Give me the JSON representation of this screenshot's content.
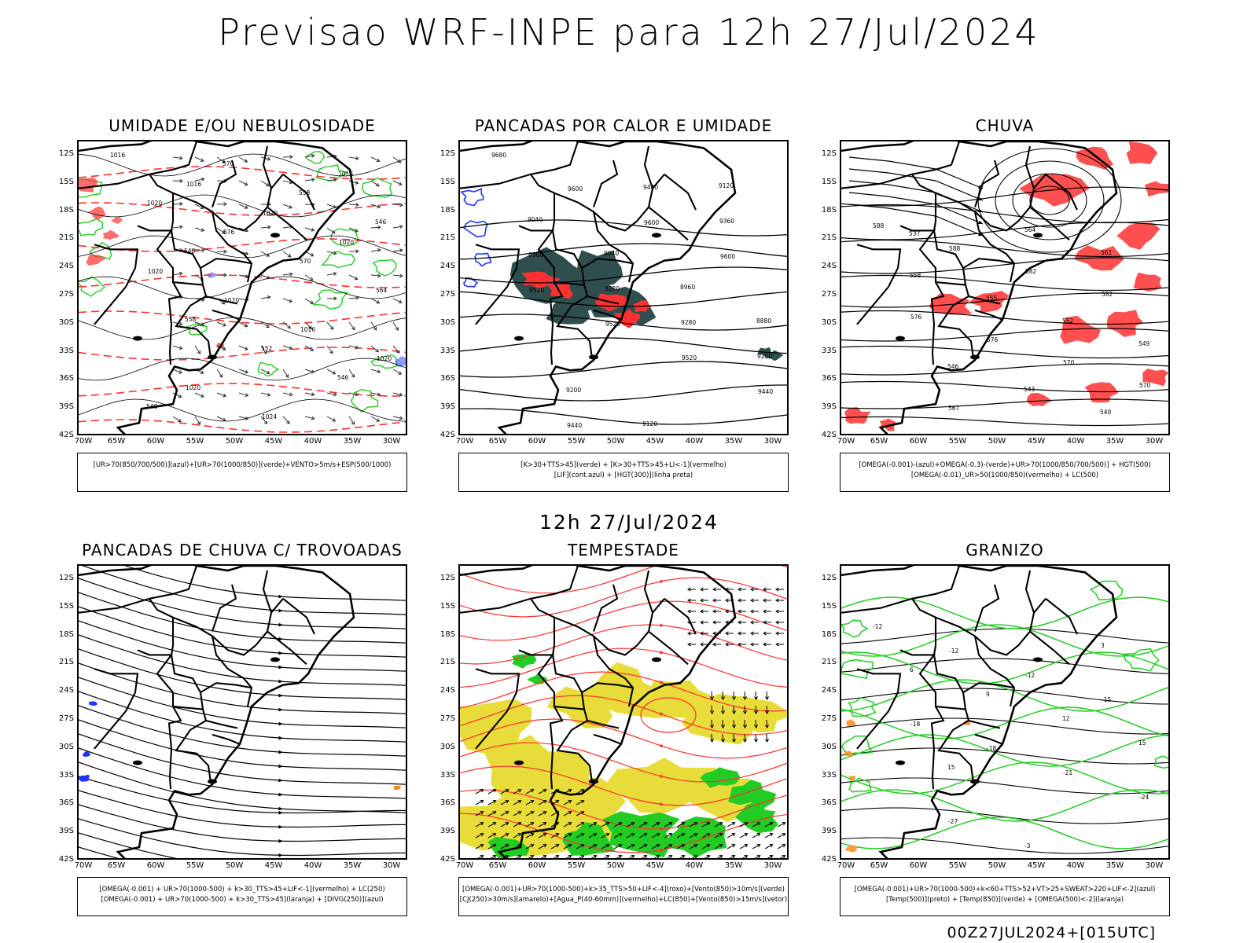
{
  "header": {
    "title": "Previsao WRF-INPE  para 12h 27/Jul/2024",
    "subtitle": "12h 27/Jul/2024",
    "footer": "00Z27JUL2024+[015UTC]"
  },
  "axes": {
    "lat_labels": [
      "12S",
      "15S",
      "18S",
      "21S",
      "24S",
      "27S",
      "30S",
      "33S",
      "36S",
      "39S",
      "42S"
    ],
    "lon_labels": [
      "70W",
      "65W",
      "60W",
      "55W",
      "50W",
      "45W",
      "40W",
      "35W",
      "30W"
    ]
  },
  "colors": {
    "red": "#ff3030",
    "green": "#22cc22",
    "blue": "#2233ff",
    "dark_teal": "#2f4f4f",
    "yellow": "#e8dc3a",
    "orange": "#ff8c1a",
    "black": "#000000"
  },
  "panels": [
    {
      "id": "umidade",
      "title": "UMIDADE E/OU NEBULOSIDADE",
      "legend": [
        "[UR>70(850/700/500)](azul)+[UR>70(1000/850)](verde)+VENTO>5m/s+ESP(500/1000)"
      ],
      "contour_labels": [
        "1016",
        "1016",
        "1020",
        "1020",
        "1020",
        "1020",
        "1016",
        "1020",
        "1020",
        "1024",
        "1016",
        "1020",
        "576",
        "570",
        "564",
        "558",
        "552",
        "546",
        "540",
        "570",
        "558",
        "546",
        "540"
      ]
    },
    {
      "id": "pancadas-calor",
      "title": "PANCADAS POR CALOR E UMIDADE",
      "legend": [
        "[K>30+TTS>45](verde) + [K>30+TTS>45+LI<-1](vermelho)",
        "[LIF](cont.azul) + [HGT(300)](linha preta)"
      ],
      "contour_labels": [
        "9680",
        "9600",
        "9600",
        "9600",
        "9520",
        "9520",
        "9520",
        "9440",
        "9440",
        "9440",
        "9360",
        "9360",
        "9280",
        "9280",
        "9200",
        "9200",
        "9120",
        "9120",
        "9040",
        "9040",
        "8960",
        "8880"
      ]
    },
    {
      "id": "chuva",
      "title": "CHUVA",
      "legend": [
        "[OMEGA(-0.001)-(azul)+OMEGA(-0.3)-(verde)+UR>70(1000/850/700/500)] + HGT(500)",
        "[OMEGA(-0.01)_UR>50(1000/850)(vermelho) + LC(500)"
      ],
      "contour_labels": [
        "588",
        "588",
        "582",
        "582",
        "576",
        "576",
        "570",
        "570",
        "567",
        "564",
        "561",
        "558",
        "555",
        "552",
        "549",
        "546",
        "543",
        "540",
        "537"
      ]
    },
    {
      "id": "pancadas-trovoadas",
      "title": "PANCADAS DE CHUVA C/ TROVOADAS",
      "legend": [
        "[OMEGA(-0.001) + UR>70(1000-500) + k>30_TTS>45+LIF<-1](vermelho) + LC(250)",
        "[OMEGA(-0.001) + UR>70(1000-500) + k>30_TTS>45](laranja) + [DIVG(250)](azul)"
      ],
      "contour_labels": []
    },
    {
      "id": "tempestade",
      "title": "TEMPESTADE",
      "legend": [
        "[OMEGA(-0.001)+UR>70(1000-500)+k>35_TTS>50+LIF<-4](roxo)+[Vento(850)>10m/s](verde)",
        "[CJ(250)>30m/s](amarelo)+[Agua_P(40-60mm)](vermelho)+LC(850)+[Vento(850)>15m/s](vetor)"
      ],
      "contour_labels": []
    },
    {
      "id": "granizo",
      "title": "GRANIZO",
      "legend": [
        "[OMEGA(-0.001)+UR>70(1000-500)+k<60+TTS>52+VT>25+SWEAT>220+LIF<-2](azul)",
        "[Temp(500)](preto) + [Temp(850)](verde) + [OMEGA(500)<-2](laranja)"
      ],
      "contour_labels": [
        "-12",
        "-12",
        "-12",
        "-15",
        "-18",
        "-18",
        "-21",
        "-24",
        "-27",
        "-3",
        "3",
        "6",
        "9",
        "12",
        "15",
        "15"
      ]
    }
  ]
}
